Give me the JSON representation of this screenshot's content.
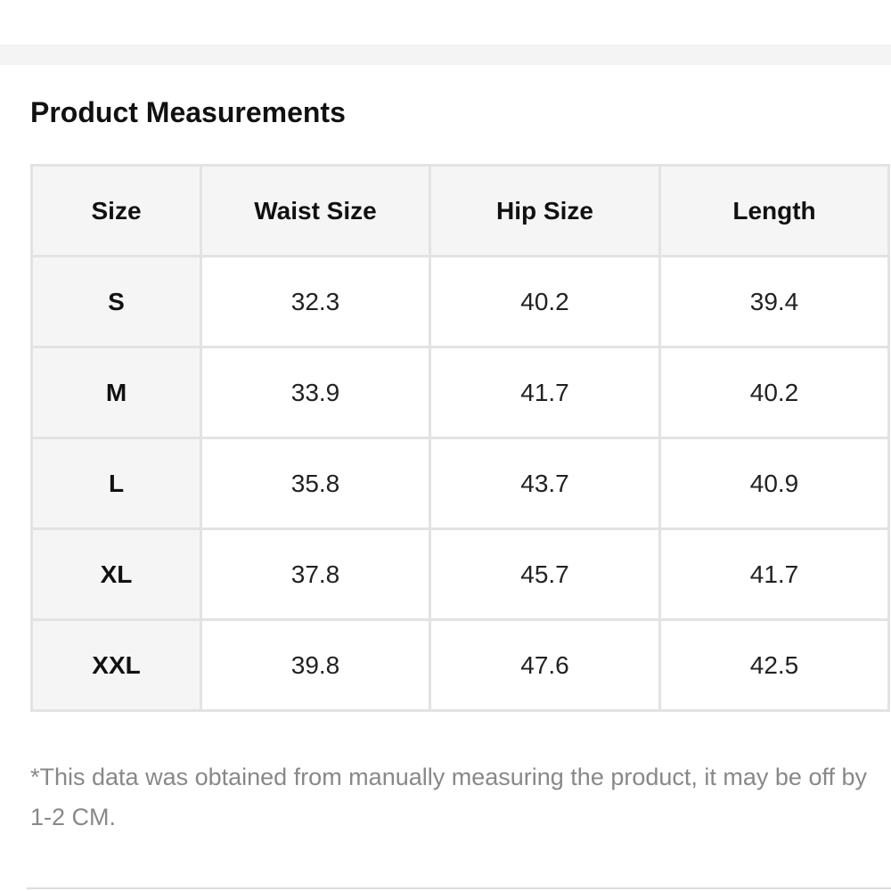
{
  "section": {
    "title": "Product Measurements"
  },
  "table": {
    "header": [
      "Size",
      "Waist Size",
      "Hip Size",
      "Length"
    ],
    "rows": [
      [
        "S",
        "32.3",
        "40.2",
        "39.4"
      ],
      [
        "M",
        "33.9",
        "41.7",
        "40.2"
      ],
      [
        "L",
        "35.8",
        "43.7",
        "40.9"
      ],
      [
        "XL",
        "37.8",
        "45.7",
        "41.7"
      ],
      [
        "XXL",
        "39.8",
        "47.6",
        "42.5"
      ]
    ]
  },
  "note": "*This data was obtained from manually measuring the product, it may be off by 1-2 CM."
}
